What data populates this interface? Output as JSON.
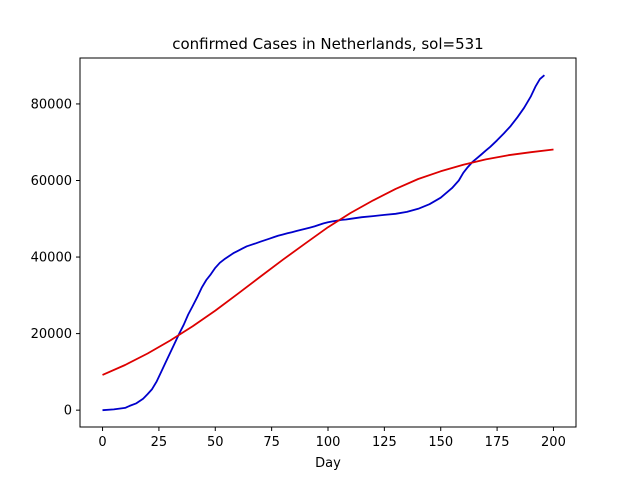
{
  "chart_data": {
    "type": "line",
    "title": "confirmed Cases in Netherlands, sol=531",
    "xlabel": "Day",
    "ylabel": "",
    "xlim": [
      -10,
      210
    ],
    "ylim": [
      -4400,
      92000
    ],
    "xticks": [
      0,
      25,
      50,
      75,
      100,
      125,
      150,
      175,
      200
    ],
    "yticks": [
      0,
      20000,
      40000,
      60000,
      80000
    ],
    "grid": false,
    "series": [
      {
        "color": "#0000cc",
        "x": [
          0,
          5,
          10,
          12,
          15,
          18,
          20,
          22,
          24,
          26,
          28,
          30,
          32,
          34,
          36,
          38,
          40,
          42,
          44,
          46,
          48,
          50,
          52,
          54,
          56,
          58,
          60,
          62,
          64,
          66,
          68,
          70,
          72,
          74,
          76,
          78,
          80,
          82,
          84,
          86,
          88,
          90,
          92,
          94,
          96,
          98,
          100,
          102,
          104,
          106,
          108,
          110,
          115,
          120,
          125,
          130,
          135,
          140,
          145,
          150,
          155,
          158,
          160,
          162,
          164,
          166,
          168,
          170,
          172,
          175,
          178,
          181,
          184,
          187,
          190,
          192,
          194,
          196
        ],
        "y": [
          0,
          200,
          600,
          1100,
          1800,
          3000,
          4200,
          5500,
          7500,
          10000,
          12500,
          15000,
          17500,
          20000,
          22300,
          25000,
          27200,
          29500,
          32000,
          34000,
          35500,
          37200,
          38500,
          39400,
          40200,
          41000,
          41600,
          42200,
          42800,
          43200,
          43600,
          44000,
          44400,
          44800,
          45200,
          45600,
          45900,
          46200,
          46500,
          46800,
          47100,
          47400,
          47700,
          48000,
          48400,
          48800,
          49100,
          49300,
          49500,
          49700,
          49800,
          50000,
          50400,
          50700,
          51000,
          51300,
          51800,
          52600,
          53800,
          55500,
          58000,
          60000,
          62000,
          63500,
          64800,
          65800,
          66800,
          67800,
          68800,
          70500,
          72300,
          74200,
          76500,
          79000,
          82000,
          84500,
          86500,
          87500
        ]
      },
      {
        "color": "#dd0000",
        "x": [
          0,
          10,
          20,
          30,
          40,
          50,
          60,
          70,
          80,
          90,
          100,
          110,
          120,
          130,
          140,
          150,
          160,
          170,
          180,
          190,
          200
        ],
        "y": [
          9200,
          11800,
          14800,
          18200,
          21900,
          26000,
          30400,
          34900,
          39300,
          43600,
          47800,
          51500,
          54800,
          57800,
          60400,
          62400,
          64100,
          65500,
          66600,
          67400,
          68100
        ]
      }
    ]
  }
}
